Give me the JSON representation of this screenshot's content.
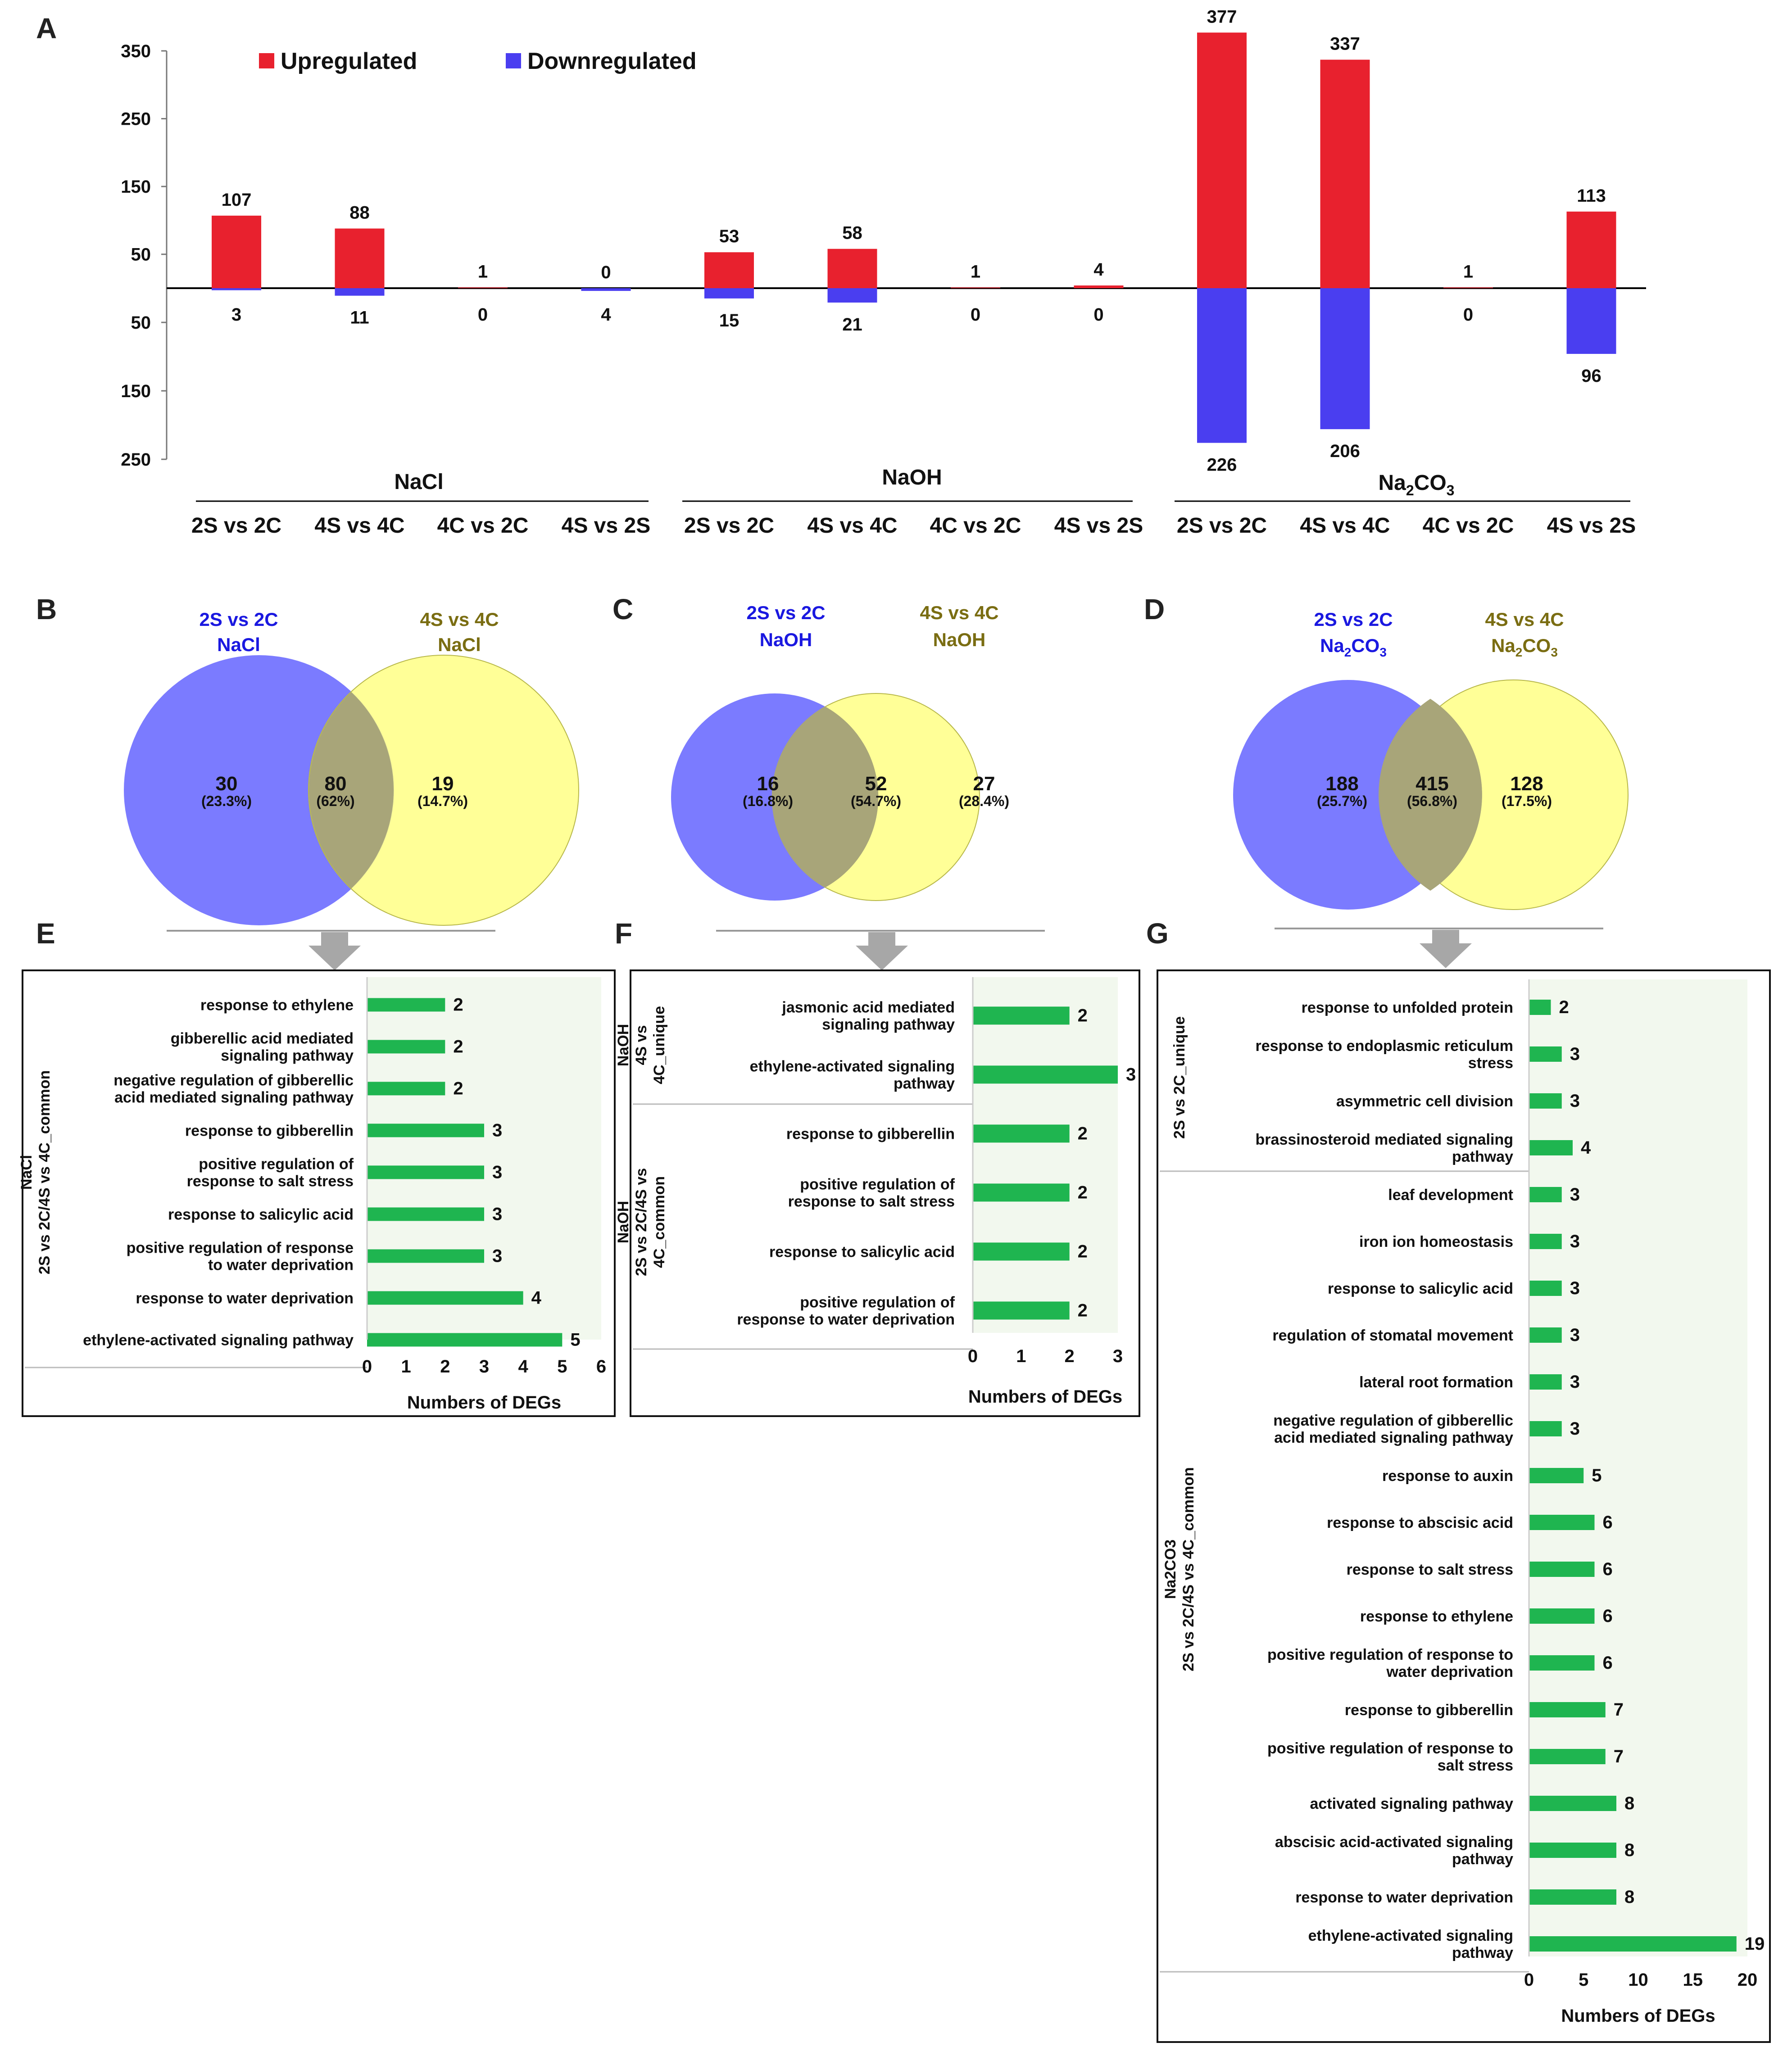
{
  "colors": {
    "up": "#e8212e",
    "down": "#4a3ef0",
    "go_bar": "#1fb550",
    "venn_left": "#7b7bff",
    "venn_right": "#ffff7a",
    "venn_left_title": "#1a18e0",
    "venn_right_title": "#7a6d12"
  },
  "chart_data": [
    {
      "panel": "A",
      "type": "bar",
      "title": "",
      "legend": {
        "up": "Upregulated",
        "down": "Downregulated",
        "placement": "top-left"
      },
      "y_ticks_up": [
        "350",
        "250",
        "150",
        "50"
      ],
      "y_ticks_down": [
        "50",
        "150",
        "250"
      ],
      "ylim_up": [
        0,
        350
      ],
      "ylim_down": [
        0,
        250
      ],
      "groups": [
        {
          "name": "NaCl",
          "name_main": "NaCl",
          "name_sub": "",
          "name_tail": ""
        },
        {
          "name": "NaOH",
          "name_main": "NaOH",
          "name_sub": "",
          "name_tail": ""
        },
        {
          "name": "Na2CO3",
          "name_main": "Na",
          "name_sub": "2",
          "name_tail": "CO",
          "name_sub2": "3"
        }
      ],
      "categories": [
        "2S vs 2C",
        "4S vs 4C",
        "4C vs 2C",
        "4S vs 2S",
        "2S vs 2C",
        "4S vs 4C",
        "4C vs 2C",
        "4S vs 2S",
        "2S vs 2C",
        "4S vs 4C",
        "4C vs 2C",
        "4S vs 2S"
      ],
      "series": [
        {
          "name": "Upregulated",
          "values": [
            107,
            88,
            1,
            0,
            53,
            58,
            1,
            4,
            377,
            337,
            1,
            113
          ],
          "labels": [
            "107",
            "88",
            "1",
            "0",
            "53",
            "58",
            "1",
            "4",
            "377",
            "337",
            "1",
            "113"
          ]
        },
        {
          "name": "Downregulated",
          "values": [
            3,
            11,
            0,
            4,
            15,
            21,
            0,
            0,
            226,
            206,
            0,
            96
          ],
          "labels": [
            "3",
            "11",
            "0",
            "4",
            "15",
            "21",
            "0",
            "0",
            "226",
            "206",
            "0",
            "96"
          ]
        }
      ]
    },
    {
      "panel": "E",
      "type": "bar",
      "orientation": "horizontal",
      "xlabel": "Numbers of DEGs",
      "xlim": [
        0,
        6
      ],
      "x_ticks": [
        "0",
        "1",
        "2",
        "3",
        "4",
        "5",
        "6"
      ],
      "sections": [
        {
          "title_lines": [
            "NaCl",
            "2S vs 2C/4S vs 4C_common"
          ],
          "items": [
            {
              "label": [
                "response to ethylene"
              ],
              "value": 2
            },
            {
              "label": [
                "gibberellic acid mediated",
                "signaling pathway"
              ],
              "value": 2
            },
            {
              "label": [
                "negative regulation of gibberellic",
                "acid mediated signaling pathway"
              ],
              "value": 2
            },
            {
              "label": [
                "response to gibberellin"
              ],
              "value": 3
            },
            {
              "label": [
                "positive regulation of",
                "response to salt stress"
              ],
              "value": 3
            },
            {
              "label": [
                "response to salicylic acid"
              ],
              "value": 3
            },
            {
              "label": [
                "positive regulation of response",
                "to water deprivation"
              ],
              "value": 3
            },
            {
              "label": [
                "response to water deprivation"
              ],
              "value": 4
            },
            {
              "label": [
                "ethylene-activated signaling pathway"
              ],
              "value": 5
            }
          ]
        }
      ]
    },
    {
      "panel": "F",
      "type": "bar",
      "orientation": "horizontal",
      "xlabel": "Numbers of DEGs",
      "xlim": [
        0,
        3
      ],
      "x_ticks": [
        "0",
        "1",
        "2",
        "3"
      ],
      "sections": [
        {
          "title_lines": [
            "NaOH",
            "4S vs",
            "4C_unique"
          ],
          "items": [
            {
              "label": [
                "jasmonic acid mediated",
                "signaling pathway"
              ],
              "value": 2
            },
            {
              "label": [
                "ethylene-activated signaling",
                "pathway"
              ],
              "value": 3
            }
          ]
        },
        {
          "title_lines": [
            "NaOH",
            "2S vs 2C/4S vs",
            "4C_common"
          ],
          "items": [
            {
              "label": [
                "response to gibberellin"
              ],
              "value": 2
            },
            {
              "label": [
                "positive regulation of",
                "response to salt stress"
              ],
              "value": 2
            },
            {
              "label": [
                "response to salicylic acid"
              ],
              "value": 2
            },
            {
              "label": [
                "positive regulation of",
                "response to water deprivation"
              ],
              "value": 2
            }
          ]
        }
      ]
    },
    {
      "panel": "G",
      "type": "bar",
      "orientation": "horizontal",
      "xlabel": "Numbers of DEGs",
      "xlim": [
        0,
        20
      ],
      "x_ticks": [
        "0",
        "5",
        "10",
        "15",
        "20"
      ],
      "sections": [
        {
          "title_lines": [
            "2S vs 2C_unique"
          ],
          "items": [
            {
              "label": [
                "response to unfolded protein"
              ],
              "value": 2
            },
            {
              "label": [
                "response to endoplasmic reticulum",
                "stress"
              ],
              "value": 3
            },
            {
              "label": [
                "asymmetric cell division"
              ],
              "value": 3
            },
            {
              "label": [
                "brassinosteroid mediated signaling",
                "pathway"
              ],
              "value": 4
            }
          ]
        },
        {
          "title_lines": [
            "Na2CO3",
            "2S vs 2C/4S vs 4C_common"
          ],
          "items": [
            {
              "label": [
                "leaf development"
              ],
              "value": 3
            },
            {
              "label": [
                "iron ion homeostasis"
              ],
              "value": 3
            },
            {
              "label": [
                "response to salicylic acid"
              ],
              "value": 3
            },
            {
              "label": [
                "regulation of stomatal movement"
              ],
              "value": 3
            },
            {
              "label": [
                "lateral root formation"
              ],
              "value": 3
            },
            {
              "label": [
                "negative regulation of gibberellic",
                "acid mediated signaling pathway"
              ],
              "value": 3
            },
            {
              "label": [
                "response to auxin"
              ],
              "value": 5
            },
            {
              "label": [
                "response to abscisic acid"
              ],
              "value": 6
            },
            {
              "label": [
                "response to salt stress"
              ],
              "value": 6
            },
            {
              "label": [
                "response to ethylene"
              ],
              "value": 6
            },
            {
              "label": [
                "positive regulation of response to",
                "water deprivation"
              ],
              "value": 6
            },
            {
              "label": [
                "response to gibberellin"
              ],
              "value": 7
            },
            {
              "label": [
                "positive regulation of response to",
                "salt stress"
              ],
              "value": 7
            },
            {
              "label": [
                "activated signaling pathway"
              ],
              "value": 8
            },
            {
              "label": [
                "abscisic acid-activated signaling",
                "pathway"
              ],
              "value": 8
            },
            {
              "label": [
                "response to water deprivation"
              ],
              "value": 8
            },
            {
              "label": [
                "ethylene-activated signaling",
                "pathway"
              ],
              "value": 19
            }
          ]
        }
      ]
    }
  ],
  "venns": [
    {
      "panel": "B",
      "left": {
        "title": "2S vs 2C",
        "sub": "NaCl",
        "sub_main": "NaCl",
        "sub_sub": "",
        "sub_tail": "",
        "sub_sub2": "",
        "count": "30",
        "pct": "(23.3%)"
      },
      "overlap": {
        "count": "80",
        "pct": "(62%)"
      },
      "right": {
        "title": "4S vs 4C",
        "sub": "NaCl",
        "sub_main": "NaCl",
        "sub_sub": "",
        "sub_tail": "",
        "sub_sub2": "",
        "count": "19",
        "pct": "(14.7%)"
      }
    },
    {
      "panel": "C",
      "left": {
        "title": "2S vs 2C",
        "sub": "NaOH",
        "sub_main": "NaOH",
        "sub_sub": "",
        "sub_tail": "",
        "sub_sub2": "",
        "count": "16",
        "pct": "(16.8%)"
      },
      "overlap": {
        "count": "52",
        "pct": "(54.7%)"
      },
      "right": {
        "title": "4S vs 4C",
        "sub": "NaOH",
        "sub_main": "NaOH",
        "sub_sub": "",
        "sub_tail": "",
        "sub_sub2": "",
        "count": "27",
        "pct": "(28.4%)"
      }
    },
    {
      "panel": "D",
      "left": {
        "title": "2S vs 2C",
        "sub": "Na2CO3",
        "sub_main": "Na",
        "sub_sub": "2",
        "sub_tail": "CO",
        "sub_sub2": "3",
        "count": "188",
        "pct": "(25.7%)"
      },
      "overlap": {
        "count": "415",
        "pct": "(56.8%)"
      },
      "right": {
        "title": "4S vs 4C",
        "sub": "Na2CO3",
        "sub_main": "Na",
        "sub_sub": "2",
        "sub_tail": "CO",
        "sub_sub2": "3",
        "count": "128",
        "pct": "(17.5%)"
      }
    }
  ]
}
